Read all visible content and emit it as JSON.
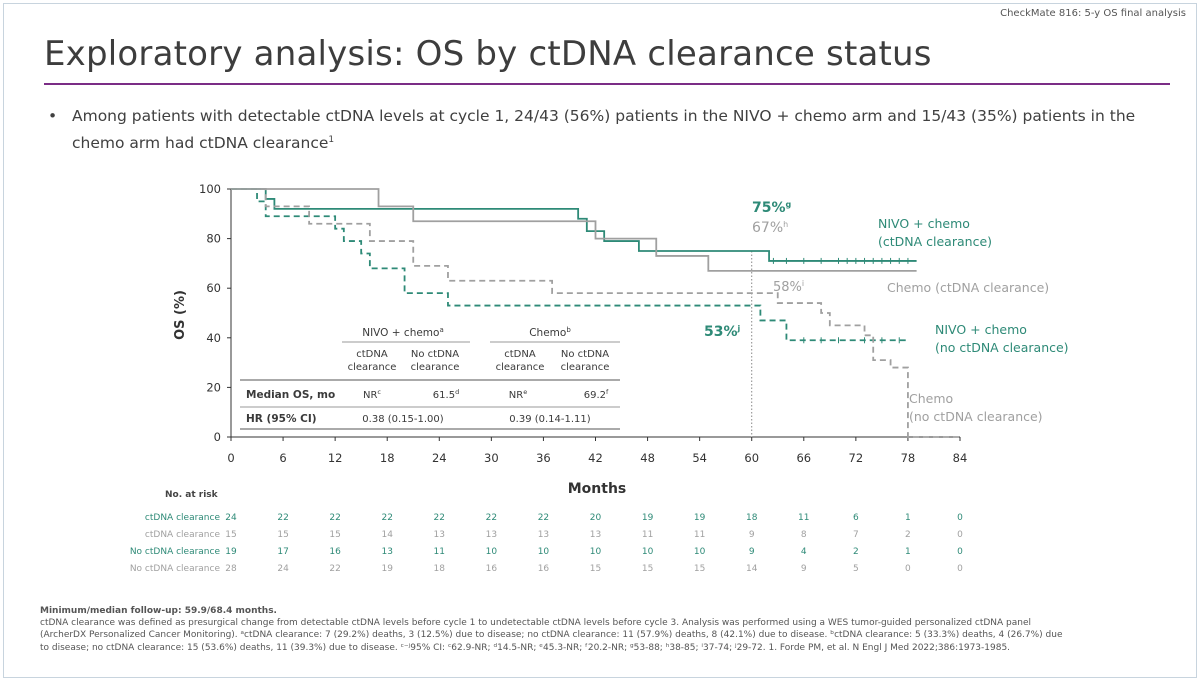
{
  "header": {
    "kicker": "CheckMate 816: 5-y OS final analysis",
    "title": "Exploratory analysis: OS by ctDNA clearance status"
  },
  "bullet": {
    "dot": "•",
    "text": "Among patients with detectable ctDNA levels at cycle 1, 24/43 (56%) patients in the NIVO + chemo arm and 15/43 (35%) patients in the chemo arm had ctDNA clearance",
    "sup": "1"
  },
  "colors": {
    "nivo": "#2e8a77",
    "chemo": "#a0a0a0",
    "purple": "#7b2d86"
  },
  "chart_data": {
    "type": "line",
    "ylabel": "OS (%)",
    "xlabel": "Months",
    "xlim": [
      0,
      84
    ],
    "ylim": [
      0,
      100
    ],
    "xticks": [
      0,
      6,
      12,
      18,
      24,
      30,
      36,
      42,
      48,
      54,
      60,
      66,
      72,
      78,
      84
    ],
    "yticks": [
      0,
      20,
      40,
      60,
      80,
      100
    ],
    "series": [
      {
        "name": "NIVO + chemo (ctDNA clearance)",
        "label_line1": "NIVO + chemo",
        "label_line2": "(ctDNA clearance)",
        "color": "#2e8a77",
        "dash": "none",
        "steps": [
          [
            0,
            100
          ],
          [
            4,
            96
          ],
          [
            5,
            92
          ],
          [
            40,
            88
          ],
          [
            41,
            83
          ],
          [
            43,
            79
          ],
          [
            47,
            75
          ],
          [
            60,
            75
          ],
          [
            62,
            71
          ],
          [
            79,
            71
          ]
        ],
        "censor": [
          62.5,
          64,
          66,
          68,
          70,
          71,
          72,
          73,
          74,
          75,
          76,
          77,
          78
        ]
      },
      {
        "name": "Chemo (ctDNA clearance)",
        "label_line1": "Chemo (ctDNA clearance)",
        "label_line2": "",
        "color": "#a0a0a0",
        "dash": "none",
        "steps": [
          [
            0,
            100
          ],
          [
            17,
            93
          ],
          [
            21,
            87
          ],
          [
            42,
            80
          ],
          [
            49,
            73
          ],
          [
            55,
            67
          ],
          [
            62,
            67
          ],
          [
            79,
            67
          ]
        ],
        "censor": []
      },
      {
        "name": "NIVO + chemo (no ctDNA clearance)",
        "label_line1": "NIVO + chemo",
        "label_line2": "(no ctDNA clearance)",
        "color": "#2e8a77",
        "dash": "6,4",
        "steps": [
          [
            0,
            100
          ],
          [
            3,
            95
          ],
          [
            4,
            89
          ],
          [
            12,
            84
          ],
          [
            13,
            79
          ],
          [
            15,
            74
          ],
          [
            16,
            68
          ],
          [
            20,
            58
          ],
          [
            25,
            53
          ],
          [
            60,
            53
          ],
          [
            61,
            47
          ],
          [
            64,
            39
          ],
          [
            78,
            39
          ]
        ],
        "censor": [
          66,
          68,
          70,
          73,
          75,
          77
        ]
      },
      {
        "name": "Chemo (no ctDNA clearance)",
        "label_line1": "Chemo",
        "label_line2": "(no ctDNA clearance)",
        "color": "#a0a0a0",
        "dash": "6,4",
        "steps": [
          [
            0,
            100
          ],
          [
            4,
            93
          ],
          [
            9,
            86
          ],
          [
            16,
            79
          ],
          [
            21,
            69
          ],
          [
            25,
            63
          ],
          [
            37,
            58
          ],
          [
            61,
            58
          ],
          [
            63,
            54
          ],
          [
            68,
            50
          ],
          [
            69,
            45
          ],
          [
            73,
            41
          ],
          [
            74,
            31
          ],
          [
            76,
            28
          ],
          [
            78,
            0
          ],
          [
            84,
            0
          ]
        ],
        "censor": []
      }
    ],
    "annotations": {
      "nivo_clear": {
        "text": "75%",
        "sup": "g"
      },
      "chemo_clear": {
        "text": "67%",
        "sup": "h"
      },
      "chemo_noclear": {
        "text": "58%",
        "sup": "i"
      },
      "nivo_noclear": {
        "text": "53%",
        "sup": "j"
      }
    },
    "reference_x": 60,
    "table": {
      "group1": "NIVO + chemo",
      "group1_sup": "a",
      "group2": "Chemo",
      "group2_sup": "b",
      "sub_a1": "ctDNA",
      "sub_a2": "clearance",
      "sub_b1": "No ctDNA",
      "sub_b2": "clearance",
      "median_label": "Median OS, mo",
      "median_values": [
        {
          "v": "NR",
          "sup": "c"
        },
        {
          "v": "61.5",
          "sup": "d"
        },
        {
          "v": "NR",
          "sup": "e"
        },
        {
          "v": "69.2",
          "sup": "f"
        }
      ],
      "hr_label": "HR (95% CI)",
      "hr1": "0.38 (0.15-1.00)",
      "hr2": "0.39 (0.14-1.11)"
    }
  },
  "risk_table": {
    "title": "No. at risk",
    "rows": [
      {
        "label": "ctDNA clearance",
        "color": "#2e8a77",
        "values": [
          "24",
          "22",
          "22",
          "22",
          "22",
          "22",
          "22",
          "20",
          "19",
          "19",
          "18",
          "11",
          "6",
          "1",
          "0"
        ]
      },
      {
        "label": "ctDNA clearance",
        "color": "#a0a0a0",
        "values": [
          "15",
          "15",
          "15",
          "14",
          "13",
          "13",
          "13",
          "13",
          "11",
          "11",
          "9",
          "8",
          "7",
          "2",
          "0"
        ]
      },
      {
        "label": "No ctDNA clearance",
        "color": "#2e8a77",
        "values": [
          "19",
          "17",
          "16",
          "13",
          "11",
          "10",
          "10",
          "10",
          "10",
          "10",
          "9",
          "4",
          "2",
          "1",
          "0"
        ]
      },
      {
        "label": "No ctDNA clearance",
        "color": "#a0a0a0",
        "values": [
          "28",
          "24",
          "22",
          "19",
          "18",
          "16",
          "16",
          "15",
          "15",
          "15",
          "14",
          "9",
          "5",
          "0",
          "0"
        ]
      }
    ]
  },
  "footer": {
    "followup": "Minimum/median follow-up: 59.9/68.4 months.",
    "line1": "ctDNA clearance was defined as presurgical change from detectable ctDNA levels before cycle 1 to undetectable ctDNA levels before cycle 3. Analysis was performed using a WES tumor-guided personalized ctDNA panel",
    "line2": "(ArcherDX Personalized Cancer Monitoring). ᵃctDNA clearance: 7 (29.2%) deaths, 3 (12.5%) due to disease; no ctDNA clearance: 11 (57.9%) deaths, 8 (42.1%) due to disease. ᵇctDNA clearance: 5 (33.3%) deaths, 4 (26.7%) due",
    "line3": "to disease; no ctDNA clearance: 15 (53.6%) deaths, 11 (39.3%) due to disease. ᶜ⁻ʲ95% CI: ᶜ62.9-NR; ᵈ14.5-NR; ᵉ45.3-NR; ᶠ20.2-NR; ᵍ53-88; ʰ38-85; ⁱ37-74; ʲ29-72. 1. Forde PM, et al. N Engl J Med 2022;386:1973-1985."
  }
}
